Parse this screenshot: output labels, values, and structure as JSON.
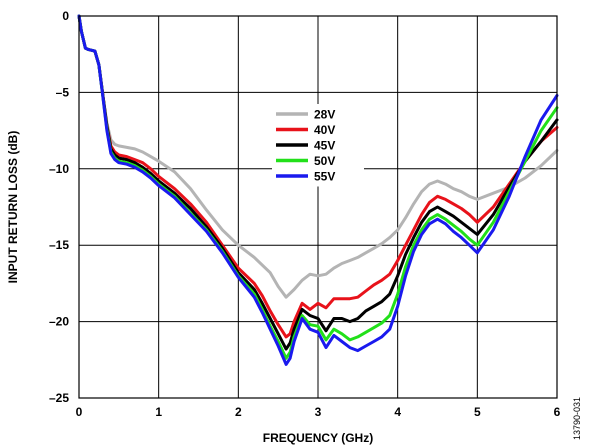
{
  "chart_data": {
    "type": "line",
    "title": "",
    "xlabel": "FREQUENCY (GHz)",
    "ylabel": "INPUT RETURN LOSS (dB)",
    "xlim": [
      0,
      6
    ],
    "ylim": [
      -25,
      0
    ],
    "xticks": [
      0,
      1,
      2,
      3,
      4,
      5,
      6
    ],
    "xtick_labels": [
      "0",
      "1",
      "2",
      "3",
      "4",
      "5",
      "6"
    ],
    "yticks": [
      0,
      -5,
      -10,
      -15,
      -20,
      -25
    ],
    "ytick_labels": [
      "0",
      "–5",
      "–10",
      "–15",
      "–20",
      "–25"
    ],
    "grid": true,
    "legend_position": "center",
    "figure_id": "13790-031",
    "series": [
      {
        "name": "28V",
        "color": "#b4b4b4",
        "x": [
          0,
          0.03,
          0.08,
          0.12,
          0.2,
          0.25,
          0.3,
          0.35,
          0.4,
          0.45,
          0.5,
          0.6,
          0.7,
          0.8,
          0.9,
          1.0,
          1.2,
          1.4,
          1.6,
          1.8,
          2.0,
          2.2,
          2.4,
          2.5,
          2.6,
          2.7,
          2.8,
          2.9,
          3.0,
          3.1,
          3.2,
          3.3,
          3.4,
          3.5,
          3.6,
          3.7,
          3.8,
          3.9,
          4.0,
          4.1,
          4.2,
          4.3,
          4.4,
          4.5,
          4.6,
          4.7,
          4.8,
          4.9,
          5.0,
          5.2,
          5.4,
          5.6,
          5.8,
          6.0
        ],
        "values": [
          0,
          -1.0,
          -2.1,
          -2.2,
          -2.3,
          -3.2,
          -5.2,
          -7.0,
          -8.1,
          -8.4,
          -8.5,
          -8.6,
          -8.7,
          -8.9,
          -9.2,
          -9.5,
          -10.2,
          -11.3,
          -12.7,
          -14.0,
          -15.0,
          -15.8,
          -16.8,
          -17.7,
          -18.4,
          -17.9,
          -17.3,
          -16.9,
          -17.0,
          -16.9,
          -16.5,
          -16.2,
          -16.0,
          -15.8,
          -15.5,
          -15.2,
          -14.9,
          -14.5,
          -14.0,
          -13.2,
          -12.3,
          -11.5,
          -11.0,
          -10.8,
          -11.0,
          -11.3,
          -11.5,
          -11.8,
          -12.0,
          -11.6,
          -11.2,
          -10.6,
          -9.8,
          -8.8
        ]
      },
      {
        "name": "40V",
        "color": "#e8121a",
        "x": [
          0,
          0.03,
          0.08,
          0.12,
          0.2,
          0.25,
          0.3,
          0.35,
          0.4,
          0.45,
          0.5,
          0.6,
          0.7,
          0.8,
          0.9,
          1.0,
          1.2,
          1.4,
          1.6,
          1.8,
          2.0,
          2.2,
          2.3,
          2.4,
          2.5,
          2.6,
          2.65,
          2.7,
          2.8,
          2.9,
          3.0,
          3.1,
          3.2,
          3.3,
          3.4,
          3.5,
          3.6,
          3.7,
          3.8,
          3.9,
          4.0,
          4.1,
          4.2,
          4.3,
          4.4,
          4.5,
          4.6,
          4.7,
          4.8,
          4.9,
          5.0,
          5.2,
          5.4,
          5.6,
          5.8,
          6.0
        ],
        "values": [
          0,
          -1.0,
          -2.1,
          -2.2,
          -2.3,
          -3.2,
          -5.2,
          -7.2,
          -8.5,
          -8.9,
          -9.1,
          -9.2,
          -9.4,
          -9.6,
          -10.0,
          -10.5,
          -11.3,
          -12.3,
          -13.5,
          -15.0,
          -16.5,
          -17.5,
          -18.3,
          -19.3,
          -20.2,
          -21.0,
          -20.8,
          -20.0,
          -18.8,
          -19.2,
          -18.8,
          -19.1,
          -18.5,
          -18.5,
          -18.5,
          -18.4,
          -18.0,
          -17.6,
          -17.3,
          -16.9,
          -16.0,
          -15.0,
          -14.0,
          -13.0,
          -12.2,
          -11.8,
          -12.0,
          -12.3,
          -12.6,
          -13.0,
          -13.5,
          -12.5,
          -11.0,
          -9.5,
          -8.2,
          -7.3
        ]
      },
      {
        "name": "45V",
        "color": "#000000",
        "x": [
          0,
          0.03,
          0.08,
          0.12,
          0.2,
          0.25,
          0.3,
          0.35,
          0.4,
          0.45,
          0.5,
          0.6,
          0.7,
          0.8,
          0.9,
          1.0,
          1.2,
          1.4,
          1.6,
          1.8,
          2.0,
          2.2,
          2.3,
          2.4,
          2.5,
          2.6,
          2.65,
          2.7,
          2.8,
          2.9,
          3.0,
          3.1,
          3.2,
          3.3,
          3.4,
          3.5,
          3.6,
          3.7,
          3.8,
          3.9,
          4.0,
          4.1,
          4.2,
          4.3,
          4.4,
          4.5,
          4.6,
          4.7,
          4.8,
          4.9,
          5.0,
          5.2,
          5.4,
          5.6,
          5.8,
          6.0
        ],
        "values": [
          0,
          -1.0,
          -2.1,
          -2.2,
          -2.3,
          -3.2,
          -5.2,
          -7.2,
          -8.7,
          -9.1,
          -9.3,
          -9.4,
          -9.6,
          -9.9,
          -10.3,
          -10.8,
          -11.6,
          -12.6,
          -13.8,
          -15.2,
          -16.8,
          -17.9,
          -18.8,
          -19.8,
          -20.8,
          -21.8,
          -21.4,
          -20.5,
          -19.2,
          -19.6,
          -19.8,
          -20.6,
          -19.8,
          -19.8,
          -20.0,
          -19.8,
          -19.3,
          -19.0,
          -18.7,
          -18.2,
          -17.0,
          -15.6,
          -14.5,
          -13.5,
          -12.8,
          -12.5,
          -12.8,
          -13.1,
          -13.5,
          -13.9,
          -14.3,
          -13.0,
          -11.2,
          -9.5,
          -8.2,
          -6.8
        ]
      },
      {
        "name": "50V",
        "color": "#22e01a",
        "x": [
          0,
          0.03,
          0.08,
          0.12,
          0.2,
          0.25,
          0.3,
          0.35,
          0.4,
          0.45,
          0.5,
          0.6,
          0.7,
          0.8,
          0.9,
          1.0,
          1.2,
          1.4,
          1.6,
          1.8,
          2.0,
          2.2,
          2.3,
          2.4,
          2.5,
          2.6,
          2.65,
          2.7,
          2.8,
          2.9,
          3.0,
          3.1,
          3.2,
          3.3,
          3.4,
          3.5,
          3.6,
          3.7,
          3.8,
          3.9,
          4.0,
          4.1,
          4.2,
          4.3,
          4.4,
          4.5,
          4.6,
          4.7,
          4.8,
          4.9,
          5.0,
          5.2,
          5.4,
          5.6,
          5.8,
          6.0
        ],
        "values": [
          0,
          -1.0,
          -2.1,
          -2.2,
          -2.3,
          -3.2,
          -5.3,
          -7.4,
          -8.9,
          -9.3,
          -9.5,
          -9.6,
          -9.8,
          -10.1,
          -10.5,
          -11.0,
          -11.8,
          -12.9,
          -14.0,
          -15.4,
          -17.0,
          -18.2,
          -19.2,
          -20.3,
          -21.3,
          -22.4,
          -22.0,
          -21.0,
          -19.6,
          -20.2,
          -20.3,
          -21.2,
          -20.5,
          -20.8,
          -21.2,
          -21.0,
          -20.7,
          -20.4,
          -20.1,
          -19.6,
          -18.2,
          -16.4,
          -15.0,
          -14.0,
          -13.3,
          -13.0,
          -13.3,
          -13.7,
          -14.1,
          -14.6,
          -15.0,
          -13.5,
          -11.5,
          -9.5,
          -7.5,
          -6.0
        ]
      },
      {
        "name": "55V",
        "color": "#1a1aee",
        "x": [
          0,
          0.03,
          0.08,
          0.12,
          0.2,
          0.25,
          0.3,
          0.35,
          0.4,
          0.45,
          0.5,
          0.6,
          0.7,
          0.8,
          0.9,
          1.0,
          1.2,
          1.4,
          1.6,
          1.8,
          2.0,
          2.2,
          2.3,
          2.4,
          2.5,
          2.6,
          2.65,
          2.7,
          2.8,
          2.9,
          3.0,
          3.1,
          3.2,
          3.3,
          3.4,
          3.5,
          3.6,
          3.7,
          3.8,
          3.9,
          4.0,
          4.1,
          4.2,
          4.3,
          4.4,
          4.5,
          4.6,
          4.7,
          4.8,
          4.9,
          5.0,
          5.2,
          5.4,
          5.6,
          5.8,
          6.0
        ],
        "values": [
          0,
          -1.0,
          -2.1,
          -2.2,
          -2.3,
          -3.2,
          -5.3,
          -7.5,
          -9.0,
          -9.4,
          -9.6,
          -9.7,
          -9.9,
          -10.2,
          -10.6,
          -11.1,
          -11.9,
          -13.0,
          -14.1,
          -15.5,
          -17.1,
          -18.4,
          -19.4,
          -20.5,
          -21.6,
          -22.8,
          -22.4,
          -21.3,
          -19.8,
          -20.5,
          -20.7,
          -21.7,
          -20.9,
          -21.3,
          -21.7,
          -21.9,
          -21.6,
          -21.3,
          -21.0,
          -20.5,
          -19.0,
          -17.0,
          -15.4,
          -14.3,
          -13.6,
          -13.3,
          -13.6,
          -14.1,
          -14.5,
          -15.0,
          -15.5,
          -14.0,
          -11.8,
          -9.2,
          -6.8,
          -5.2
        ]
      }
    ]
  }
}
